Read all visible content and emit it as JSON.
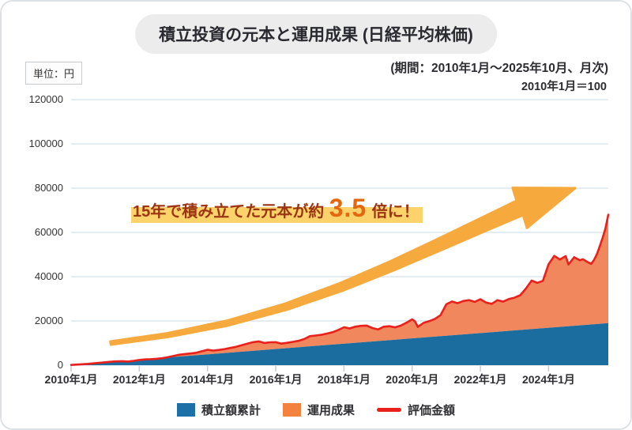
{
  "chart_data": {
    "type": "area",
    "title": "積立投資の元本と運用成果 (日経平均株価)",
    "period": "(期間：2010年1月～2025年10月、月次)",
    "base_note": "2010年1月＝100",
    "unit": "単位：円",
    "x_range": [
      "2010年1月",
      "2025年10月"
    ],
    "months": 190,
    "x_tick_months": [
      0,
      24,
      48,
      72,
      96,
      120,
      144,
      168
    ],
    "x_tick_labels": [
      "2010年1月",
      "2012年1月",
      "2014年1月",
      "2016年1月",
      "2018年1月",
      "2020年1月",
      "2022年1月",
      "2024年1月"
    ],
    "ylim": [
      0,
      120000
    ],
    "y_ticks": [
      0,
      20000,
      40000,
      60000,
      80000,
      100000,
      120000
    ],
    "grid": true,
    "legend_position": "bottom",
    "annotation": {
      "prefix": "15年で積み立てた元本が約",
      "number": "3.5",
      "suffix": "倍に！"
    },
    "colors": {
      "grid": "#d9e5ed",
      "arrow": "#f6a93c",
      "highlight": "#fcd36a",
      "annotation_text": "#9c3413",
      "annotation_number": "#e4660f",
      "title_bg": "#ececec"
    },
    "series": [
      {
        "name": "積立額累計",
        "kind": "area",
        "color": "#1b6da0",
        "role": "principal",
        "monthly_contribution": 100,
        "final_value": 19000,
        "shape": "linear"
      },
      {
        "name": "運用成果",
        "kind": "area",
        "color": "#f1875c",
        "role": "gains",
        "definition": "評価金額 − 積立額累計"
      },
      {
        "name": "評価金額",
        "kind": "line",
        "color": "#e9201b",
        "role": "valuation",
        "points_month_value": [
          [
            0,
            100
          ],
          [
            2,
            300
          ],
          [
            4,
            430
          ],
          [
            6,
            620
          ],
          [
            9,
            950
          ],
          [
            12,
            1320
          ],
          [
            15,
            1680
          ],
          [
            18,
            1820
          ],
          [
            20,
            1650
          ],
          [
            22,
            1950
          ],
          [
            24,
            2360
          ],
          [
            26,
            2600
          ],
          [
            28,
            2720
          ],
          [
            30,
            2900
          ],
          [
            32,
            3150
          ],
          [
            34,
            3600
          ],
          [
            36,
            4150
          ],
          [
            38,
            4700
          ],
          [
            40,
            5050
          ],
          [
            42,
            5300
          ],
          [
            44,
            5600
          ],
          [
            46,
            6300
          ],
          [
            48,
            6950
          ],
          [
            50,
            6600
          ],
          [
            52,
            6900
          ],
          [
            54,
            7300
          ],
          [
            56,
            7800
          ],
          [
            58,
            8300
          ],
          [
            60,
            9050
          ],
          [
            62,
            9700
          ],
          [
            64,
            10400
          ],
          [
            66,
            10750
          ],
          [
            68,
            10050
          ],
          [
            70,
            10350
          ],
          [
            72,
            10400
          ],
          [
            74,
            9750
          ],
          [
            76,
            10100
          ],
          [
            78,
            10550
          ],
          [
            80,
            11000
          ],
          [
            82,
            11800
          ],
          [
            84,
            13100
          ],
          [
            86,
            13400
          ],
          [
            88,
            13700
          ],
          [
            90,
            14300
          ],
          [
            92,
            14900
          ],
          [
            94,
            15900
          ],
          [
            96,
            17150
          ],
          [
            98,
            16600
          ],
          [
            100,
            17400
          ],
          [
            102,
            17800
          ],
          [
            104,
            17900
          ],
          [
            106,
            16800
          ],
          [
            108,
            16150
          ],
          [
            110,
            17400
          ],
          [
            112,
            17600
          ],
          [
            114,
            17100
          ],
          [
            116,
            17900
          ],
          [
            118,
            19200
          ],
          [
            120,
            20700
          ],
          [
            121,
            19800
          ],
          [
            122,
            17300
          ],
          [
            124,
            19100
          ],
          [
            126,
            19900
          ],
          [
            128,
            20900
          ],
          [
            130,
            22600
          ],
          [
            132,
            27500
          ],
          [
            134,
            28800
          ],
          [
            136,
            28000
          ],
          [
            138,
            29000
          ],
          [
            140,
            29400
          ],
          [
            142,
            28600
          ],
          [
            144,
            29800
          ],
          [
            146,
            28300
          ],
          [
            148,
            27700
          ],
          [
            150,
            29400
          ],
          [
            152,
            28700
          ],
          [
            154,
            29900
          ],
          [
            156,
            30500
          ],
          [
            158,
            31600
          ],
          [
            160,
            34600
          ],
          [
            162,
            38200
          ],
          [
            164,
            37200
          ],
          [
            166,
            38100
          ],
          [
            168,
            45600
          ],
          [
            170,
            49400
          ],
          [
            172,
            47700
          ],
          [
            174,
            49300
          ],
          [
            175,
            45500
          ],
          [
            177,
            48800
          ],
          [
            179,
            47400
          ],
          [
            180,
            47900
          ],
          [
            182,
            46400
          ],
          [
            183,
            45800
          ],
          [
            184,
            47600
          ],
          [
            185,
            50200
          ],
          [
            186,
            53800
          ],
          [
            187,
            57500
          ],
          [
            188,
            61800
          ],
          [
            189,
            68000
          ]
        ]
      }
    ],
    "legend": [
      {
        "label": "積立額累計",
        "swatch": "square",
        "color": "#1b70a8"
      },
      {
        "label": "運用成果",
        "swatch": "square",
        "color": "#f5813e"
      },
      {
        "label": "評価金額",
        "swatch": "line",
        "color": "#e9201b"
      }
    ]
  }
}
